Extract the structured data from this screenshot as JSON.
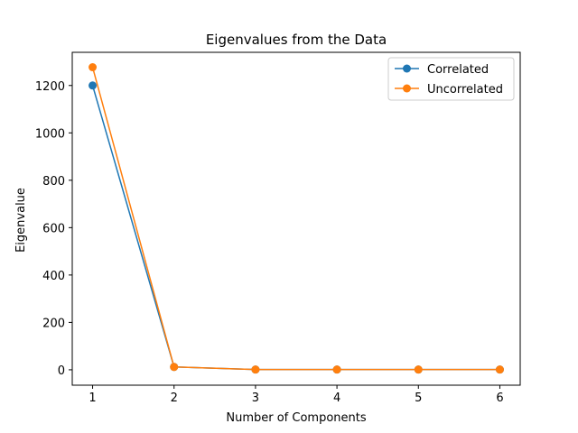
{
  "chart_data": {
    "type": "line",
    "title": "Eigenvalues from the Data",
    "xlabel": "Number of Components",
    "ylabel": "Eigenvalue",
    "x": [
      1,
      2,
      3,
      4,
      5,
      6
    ],
    "xlim": [
      0.75,
      6.25
    ],
    "ylim": [
      -65,
      1340
    ],
    "xticks": [
      1,
      2,
      3,
      4,
      5,
      6
    ],
    "yticks": [
      0,
      200,
      400,
      600,
      800,
      1000,
      1200
    ],
    "grid": false,
    "legend_position": "top-right",
    "series": [
      {
        "name": "Correlated",
        "color": "#1f77b4",
        "marker": "circle",
        "values": [
          1200,
          12,
          1,
          1,
          1,
          1
        ]
      },
      {
        "name": "Uncorrelated",
        "color": "#ff7f0e",
        "marker": "circle",
        "values": [
          1277,
          12,
          1,
          1,
          1,
          1
        ]
      }
    ]
  }
}
